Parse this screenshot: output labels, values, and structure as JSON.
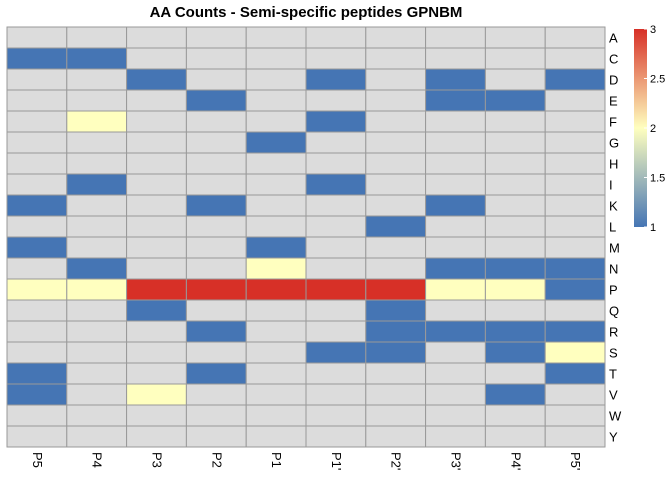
{
  "chart_data": {
    "type": "heatmap",
    "title": "AA Counts - Semi-specific peptides GPNBM",
    "xlabel": "",
    "ylabel": "",
    "columns": [
      "P5",
      "P4",
      "P3",
      "P2",
      "P1",
      "P1'",
      "P2'",
      "P3'",
      "P4'",
      "P5'"
    ],
    "rows": [
      "A",
      "C",
      "D",
      "E",
      "F",
      "G",
      "H",
      "I",
      "K",
      "L",
      "M",
      "N",
      "P",
      "Q",
      "R",
      "S",
      "T",
      "V",
      "W",
      "Y"
    ],
    "values": [
      [
        null,
        null,
        null,
        null,
        null,
        null,
        null,
        null,
        null,
        null
      ],
      [
        1,
        1,
        null,
        null,
        null,
        null,
        null,
        null,
        null,
        null
      ],
      [
        null,
        null,
        1,
        null,
        null,
        1,
        null,
        1,
        null,
        1
      ],
      [
        null,
        null,
        null,
        1,
        null,
        null,
        null,
        1,
        1,
        null
      ],
      [
        null,
        2,
        null,
        null,
        null,
        1,
        null,
        null,
        null,
        null
      ],
      [
        null,
        null,
        null,
        null,
        1,
        null,
        null,
        null,
        null,
        null
      ],
      [
        null,
        null,
        null,
        null,
        null,
        null,
        null,
        null,
        null,
        null
      ],
      [
        null,
        1,
        null,
        null,
        null,
        1,
        null,
        null,
        null,
        null
      ],
      [
        1,
        null,
        null,
        1,
        null,
        null,
        null,
        1,
        null,
        null
      ],
      [
        null,
        null,
        null,
        null,
        null,
        null,
        1,
        null,
        null,
        null
      ],
      [
        1,
        null,
        null,
        null,
        1,
        null,
        null,
        null,
        null,
        null
      ],
      [
        null,
        1,
        null,
        null,
        2,
        null,
        null,
        1,
        1,
        1
      ],
      [
        2,
        2,
        3,
        3,
        3,
        3,
        3,
        2,
        2,
        1
      ],
      [
        null,
        null,
        1,
        null,
        null,
        null,
        1,
        null,
        null,
        null
      ],
      [
        null,
        null,
        null,
        1,
        null,
        null,
        1,
        1,
        1,
        1
      ],
      [
        null,
        null,
        null,
        null,
        null,
        1,
        1,
        null,
        1,
        2
      ],
      [
        1,
        null,
        null,
        1,
        null,
        null,
        null,
        null,
        null,
        1
      ],
      [
        1,
        null,
        2,
        null,
        null,
        null,
        null,
        null,
        1,
        null
      ],
      [
        null,
        null,
        null,
        null,
        null,
        null,
        null,
        null,
        null,
        null
      ],
      [
        null,
        null,
        null,
        null,
        null,
        null,
        null,
        null,
        null,
        null
      ]
    ],
    "colorbar": {
      "min": 1,
      "max": 3,
      "ticks": [
        1,
        1.5,
        2,
        2.5,
        3
      ],
      "tick_labels": [
        "1",
        "1.5",
        "2",
        "2.5",
        "3"
      ]
    },
    "colors": {
      "low": "#4575b4",
      "mid": "#ffffbf",
      "high": "#d73027",
      "na": "#dcdcdc",
      "grid": "#999999",
      "text": "#000000"
    },
    "legend_position": "right"
  }
}
